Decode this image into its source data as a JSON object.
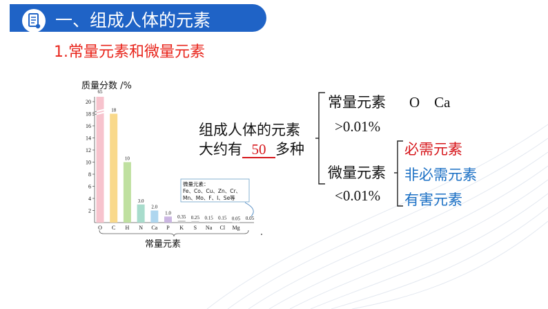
{
  "header": {
    "title": "一、组成人体的元素",
    "accent": "#1f63c6"
  },
  "section": {
    "heading": "1.常量元素和微量元素"
  },
  "chart_data": {
    "type": "bar",
    "ylabel": "质量分数 /%",
    "xlabel": "常量元素",
    "yticks": [
      "2",
      "4",
      "6",
      "8",
      "10",
      "12",
      "14",
      "16",
      "18",
      "20"
    ],
    "ylim": [
      0,
      20.8
    ],
    "categories": [
      "O",
      "C",
      "H",
      "N",
      "Ca",
      "P",
      "K",
      "S",
      "Na",
      "Cl",
      "Mg"
    ],
    "values": [
      65,
      18,
      10,
      3.0,
      2.0,
      1.0,
      0.35,
      0.25,
      0.15,
      0.15,
      0.05
    ],
    "value_labels": [
      "65",
      "18",
      "10",
      "3.0",
      "2.0",
      "1.0",
      "0.35",
      "0.25",
      "0.15",
      "0.15",
      "0.05"
    ],
    "extra_tail_label": "0.05",
    "colors": [
      "#f7c3cd",
      "#f9d98b",
      "#bfe0a0",
      "#a8dccc",
      "#aed6ef",
      "#cbb6e2",
      "#cccccc",
      "#cccccc",
      "#cccccc",
      "#cccccc",
      "#cccccc"
    ],
    "note": {
      "title": "微量元素：",
      "line1": "Fe、Co、Cu、Zn、Cr、",
      "line2": "Mn、Mo、F、I、Se等"
    }
  },
  "content": {
    "composition_line1": "组成人体的元素",
    "composition_prefix": "大约有",
    "composition_blank": "50",
    "composition_suffix": "多种",
    "major": {
      "label": "常量元素",
      "elements": "O    Ca",
      "threshold": ">0.01%"
    },
    "trace": {
      "label": "微量元素",
      "threshold": "<0.01%",
      "essential": "必需元素",
      "nonessential": "非必需元素",
      "harmful": "有害元素"
    }
  }
}
